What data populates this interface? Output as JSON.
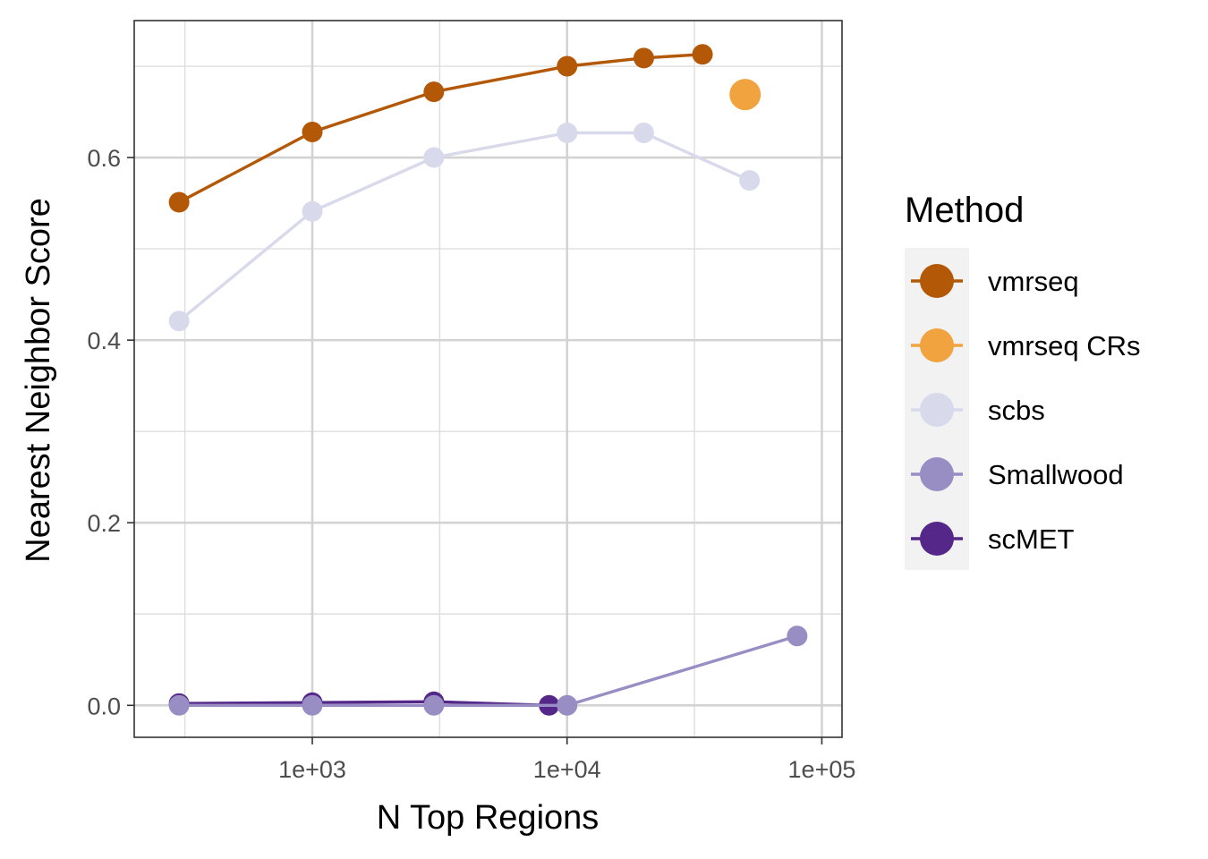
{
  "chart_data": {
    "type": "line",
    "xlabel": "N Top Regions",
    "ylabel": "Nearest Neighbor Score",
    "x_scale": "log10",
    "xlim": [
      200,
      120000
    ],
    "ylim": [
      -0.035,
      0.75
    ],
    "x_ticks": [
      {
        "value": 1000,
        "label": "1e+03"
      },
      {
        "value": 10000,
        "label": "1e+04"
      },
      {
        "value": 100000,
        "label": "1e+05"
      }
    ],
    "y_ticks": [
      {
        "value": 0.0,
        "label": "0.0"
      },
      {
        "value": 0.2,
        "label": "0.2"
      },
      {
        "value": 0.4,
        "label": "0.4"
      },
      {
        "value": 0.6,
        "label": "0.6"
      }
    ],
    "grid": true,
    "legend": {
      "title": "Method",
      "placement": "right"
    },
    "series": [
      {
        "name": "vmrseq",
        "color": "#b35806",
        "lines": true,
        "big_point": false,
        "x": [
          300,
          1000,
          3000,
          10000,
          20000,
          34000
        ],
        "y": [
          0.551,
          0.628,
          0.672,
          0.7,
          0.709,
          0.713
        ]
      },
      {
        "name": "vmrseq CRs",
        "color": "#f1a340",
        "lines": false,
        "big_point": true,
        "x": [
          50000
        ],
        "y": [
          0.669
        ]
      },
      {
        "name": "scbs",
        "color": "#d8daeb",
        "lines": true,
        "big_point": false,
        "x": [
          300,
          1000,
          3000,
          10000,
          20000,
          52000
        ],
        "y": [
          0.421,
          0.541,
          0.6,
          0.627,
          0.627,
          0.575
        ]
      },
      {
        "name": "Smallwood",
        "color": "#998ec3",
        "lines": true,
        "big_point": false,
        "x": [
          300,
          1000,
          3000,
          10000,
          80000
        ],
        "y": [
          0.0,
          0.0,
          0.0,
          0.0,
          0.076
        ]
      },
      {
        "name": "scMET",
        "color": "#542788",
        "lines": true,
        "big_point": false,
        "x": [
          300,
          1000,
          3000,
          8500
        ],
        "y": [
          0.002,
          0.003,
          0.004,
          0.0
        ]
      }
    ]
  }
}
